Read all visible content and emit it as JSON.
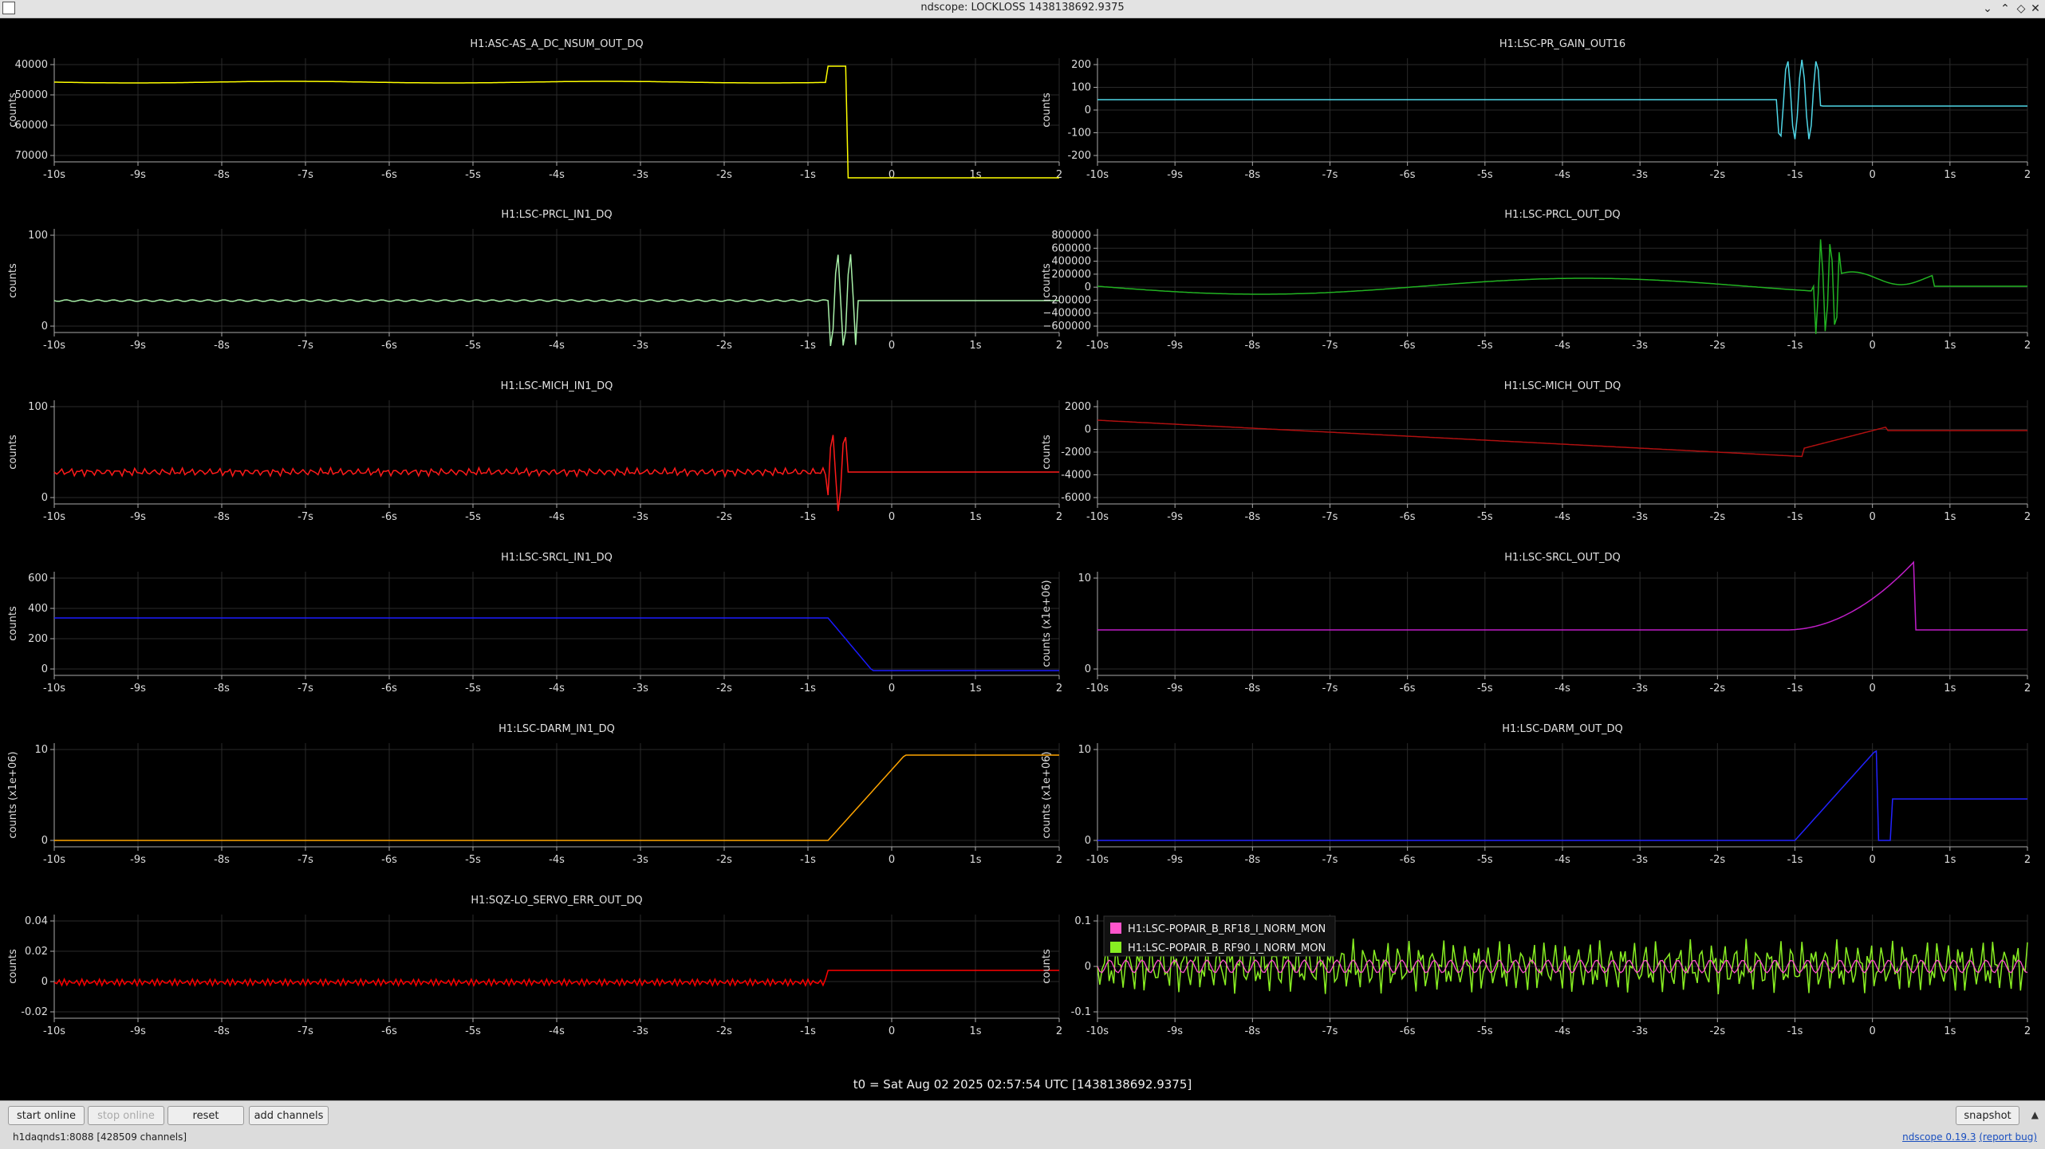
{
  "window": {
    "title": "ndscope: LOCKLOSS 1438138692.9375"
  },
  "t0_label": "t0 = Sat Aug 02 2025 02:57:54 UTC [1438138692.9375]",
  "buttons": {
    "start_online": "start online",
    "stop_online": "stop online",
    "reset": "reset",
    "add_channels": "add channels",
    "snapshot": "snapshot"
  },
  "status": {
    "server": "h1daqnds1:8088  [428509 channels]",
    "version_link": "ndscope 0.19.3",
    "report_bug": "(report bug)"
  },
  "plots": [
    {
      "title": "H1:ASC-AS_A_DC_NSUM_OUT_DQ",
      "ylabel": "counts",
      "color": "#ffff00",
      "yticks": [
        "40000",
        "50000",
        "60000",
        "70000"
      ],
      "xticks": [
        "-10s",
        "-9s",
        "-8s",
        "-7s",
        "-6s",
        "-5s",
        "-4s",
        "-3s",
        "-2s",
        "-1s",
        "0",
        "1s",
        "2"
      ]
    },
    {
      "title": "H1:LSC-PR_GAIN_OUT16",
      "ylabel": "counts",
      "color": "#4fd6e6",
      "yticks": [
        "200",
        "100",
        "0",
        "-100",
        "-200"
      ],
      "xticks": [
        "-10s",
        "-9s",
        "-8s",
        "-7s",
        "-6s",
        "-5s",
        "-4s",
        "-3s",
        "-2s",
        "-1s",
        "0",
        "1s",
        "2"
      ]
    },
    {
      "title": "H1:LSC-PRCL_IN1_DQ",
      "ylabel": "counts",
      "color": "#a8f0a8",
      "yticks": [
        "100",
        "0"
      ],
      "xticks": [
        "-10s",
        "-9s",
        "-8s",
        "-7s",
        "-6s",
        "-5s",
        "-4s",
        "-3s",
        "-2s",
        "-1s",
        "0",
        "1s",
        "2"
      ]
    },
    {
      "title": "H1:LSC-PRCL_OUT_DQ",
      "ylabel": "counts",
      "color": "#22b322",
      "yticks": [
        "800000",
        "600000",
        "400000",
        "200000",
        "0",
        "−200000",
        "−400000",
        "−600000"
      ],
      "xticks": [
        "-10s",
        "-9s",
        "-8s",
        "-7s",
        "-6s",
        "-5s",
        "-4s",
        "-3s",
        "-2s",
        "-1s",
        "0",
        "1s",
        "2"
      ]
    },
    {
      "title": "H1:LSC-MICH_IN1_DQ",
      "ylabel": "counts",
      "color": "#ff1a1a",
      "yticks": [
        "100",
        "0"
      ],
      "xticks": [
        "-10s",
        "-9s",
        "-8s",
        "-7s",
        "-6s",
        "-5s",
        "-4s",
        "-3s",
        "-2s",
        "-1s",
        "0",
        "1s",
        "2"
      ]
    },
    {
      "title": "H1:LSC-MICH_OUT_DQ",
      "ylabel": "counts",
      "color": "#b01010",
      "yticks": [
        "2000",
        "0",
        "-2000",
        "-4000",
        "-6000"
      ],
      "xticks": [
        "-10s",
        "-9s",
        "-8s",
        "-7s",
        "-6s",
        "-5s",
        "-4s",
        "-3s",
        "-2s",
        "-1s",
        "0",
        "1s",
        "2"
      ]
    },
    {
      "title": "H1:LSC-SRCL_IN1_DQ",
      "ylabel": "counts",
      "color": "#1a1aff",
      "yticks": [
        "600",
        "400",
        "200",
        "0"
      ],
      "xticks": [
        "-10s",
        "-9s",
        "-8s",
        "-7s",
        "-6s",
        "-5s",
        "-4s",
        "-3s",
        "-2s",
        "-1s",
        "0",
        "1s",
        "2"
      ]
    },
    {
      "title": "H1:LSC-SRCL_OUT_DQ",
      "ylabel": "counts (x1e+06)",
      "color": "#c01ec8",
      "yticks": [
        "10",
        "0"
      ],
      "xticks": [
        "-10s",
        "-9s",
        "-8s",
        "-7s",
        "-6s",
        "-5s",
        "-4s",
        "-3s",
        "-2s",
        "-1s",
        "0",
        "1s",
        "2"
      ]
    },
    {
      "title": "H1:LSC-DARM_IN1_DQ",
      "ylabel": "counts (x1e+06)",
      "color": "#ffa500",
      "yticks": [
        "10",
        "0"
      ],
      "xticks": [
        "-10s",
        "-9s",
        "-8s",
        "-7s",
        "-6s",
        "-5s",
        "-4s",
        "-3s",
        "-2s",
        "-1s",
        "0",
        "1s",
        "2"
      ]
    },
    {
      "title": "H1:LSC-DARM_OUT_DQ",
      "ylabel": "counts (x1e+06)",
      "color": "#2222ff",
      "yticks": [
        "10",
        "0"
      ],
      "xticks": [
        "-10s",
        "-9s",
        "-8s",
        "-7s",
        "-6s",
        "-5s",
        "-4s",
        "-3s",
        "-2s",
        "-1s",
        "0",
        "1s",
        "2"
      ]
    },
    {
      "title": "H1:SQZ-LO_SERVO_ERR_OUT_DQ",
      "ylabel": "counts",
      "color": "#ff0000",
      "yticks": [
        "0.04",
        "0.02",
        "0",
        "-0.02"
      ],
      "xticks": [
        "-10s",
        "-9s",
        "-8s",
        "-7s",
        "-6s",
        "-5s",
        "-4s",
        "-3s",
        "-2s",
        "-1s",
        "0",
        "1s",
        "2"
      ]
    },
    {
      "title": "",
      "ylabel": "counts",
      "color": "#88ee22",
      "yticks": [
        "0.1",
        "0",
        "-0.1"
      ],
      "xticks": [
        "-10s",
        "-9s",
        "-8s",
        "-7s",
        "-6s",
        "-5s",
        "-4s",
        "-3s",
        "-2s",
        "-1s",
        "0",
        "1s",
        "2"
      ],
      "legend": [
        {
          "name": "H1:LSC-POPAIR_B_RF18_I_NORM_MON",
          "color": "#ff55cc"
        },
        {
          "name": "H1:LSC-POPAIR_B_RF90_I_NORM_MON",
          "color": "#88ee22"
        }
      ]
    }
  ]
}
